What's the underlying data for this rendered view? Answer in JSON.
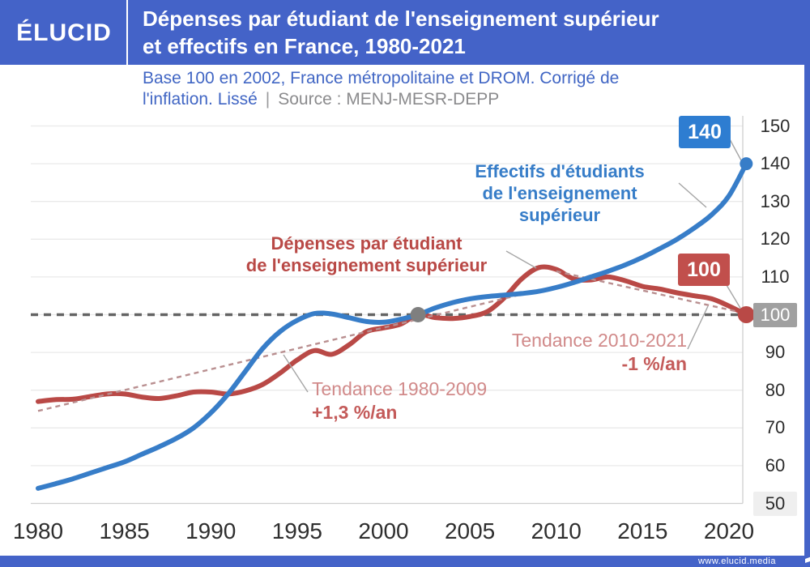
{
  "header": {
    "logo": "ÉLUCID",
    "title_line1": "Dépenses par étudiant de l'enseignement supérieur",
    "title_line2": "et effectifs en France, 1980-2021"
  },
  "subtitle": {
    "line1": "Base 100 en 2002, France métropolitaine et DROM. Corrigé de",
    "line2_blue": "l'inflation. Lissé",
    "separator": "|",
    "source": "Source : MENJ-MESR-DEPP"
  },
  "footer": {
    "url": "www.elucid.media"
  },
  "colors": {
    "header_blue": "#4463c8",
    "effectifs_line": "#377dc8",
    "effectifs_box": "#2e7dd1",
    "depenses_line": "#b94946",
    "depenses_box": "#c14f4c",
    "trend_dash": "#b98f90",
    "baseline_dash": "#646464",
    "grid": "#eaeaea",
    "axis_text": "#2c2c2c",
    "ytick_100_bg": "#a0a0a0",
    "ytick_50_bg": "#efefef"
  },
  "annotations": {
    "blue_label": {
      "line1": "Effectifs d'étudiants",
      "line2": "de l'enseignement supérieur"
    },
    "red_label": {
      "line1": "Dépenses par étudiant",
      "line2": "de l'enseignement supérieur"
    },
    "trend1": {
      "name": "Tendance 1980-2009",
      "rate": "+1,3 %/an"
    },
    "trend2": {
      "name": "Tendance 2010-2021",
      "rate": "-1 %/an"
    },
    "end_label_blue": "140",
    "end_label_red": "100"
  },
  "chart_data": {
    "type": "line",
    "title": "Dépenses par étudiant de l'enseignement supérieur et effectifs en France, 1980-2021",
    "note": "Base 100 en 2002, France métropolitaine et DROM. Corrigé de l'inflation. Lissé",
    "x": [
      1980,
      1981,
      1982,
      1983,
      1984,
      1985,
      1986,
      1987,
      1988,
      1989,
      1990,
      1991,
      1992,
      1993,
      1994,
      1995,
      1996,
      1997,
      1998,
      1999,
      2000,
      2001,
      2002,
      2003,
      2004,
      2005,
      2006,
      2007,
      2008,
      2009,
      2010,
      2011,
      2012,
      2013,
      2014,
      2015,
      2016,
      2017,
      2018,
      2019,
      2020,
      2021
    ],
    "series": [
      {
        "name": "Effectifs d'étudiants de l'enseignement supérieur",
        "color": "#377dc8",
        "values": [
          54,
          55.2,
          56.5,
          58,
          59.5,
          61,
          63,
          65,
          67.2,
          70,
          74,
          79,
          85,
          91,
          95.5,
          98.5,
          100.3,
          100.2,
          99.2,
          98.2,
          98,
          98.8,
          100,
          101.8,
          103.2,
          104.2,
          104.8,
          105.2,
          105.6,
          106.2,
          107.2,
          108.5,
          110,
          111.5,
          113.2,
          115.2,
          117.5,
          120,
          123,
          126.5,
          131.5,
          140
        ]
      },
      {
        "name": "Dépenses par étudiant de l'enseignement supérieur",
        "color": "#b94946",
        "values": [
          77,
          77.5,
          77.6,
          78.3,
          79,
          79,
          78.2,
          77.8,
          78.5,
          79.5,
          79.5,
          79,
          79.8,
          81.5,
          84.5,
          88,
          90.5,
          89.5,
          92,
          95.5,
          96.5,
          97.5,
          100,
          99.2,
          99,
          99.5,
          100.8,
          104.5,
          109.5,
          112.5,
          112,
          109.5,
          109.2,
          110,
          109,
          107.5,
          106.8,
          105.8,
          105,
          104.2,
          102.3,
          100
        ]
      }
    ],
    "trends": [
      {
        "name": "Tendance 1980-2009",
        "rate_label": "+1,3 %/an",
        "x": [
          1980,
          2009
        ],
        "values": [
          74.5,
          106.5
        ]
      },
      {
        "name": "Tendance 2010-2021",
        "rate_label": "-1 %/an",
        "x": [
          2010,
          2021
        ],
        "values": [
          111.5,
          100.3
        ]
      }
    ],
    "baseline": {
      "value": 100,
      "base_year": 2002
    },
    "base_point": {
      "x": 2002,
      "y": 100
    },
    "end_points": [
      {
        "series": 0,
        "x": 2021,
        "y": 140,
        "label": "140"
      },
      {
        "series": 1,
        "x": 2021,
        "y": 100,
        "label": "100"
      }
    ],
    "yticks": [
      150,
      140,
      130,
      120,
      110,
      100,
      90,
      80,
      70,
      60,
      50
    ],
    "ytick_highlight": {
      "100": "dark",
      "50": "light"
    },
    "xticks": [
      1980,
      1985,
      1990,
      1995,
      2000,
      2005,
      2010,
      2015,
      2020
    ],
    "xlim": [
      1980,
      2021
    ],
    "ylim": [
      50,
      153
    ],
    "grid": "horizontal",
    "legend_position": "inline-annotations"
  }
}
